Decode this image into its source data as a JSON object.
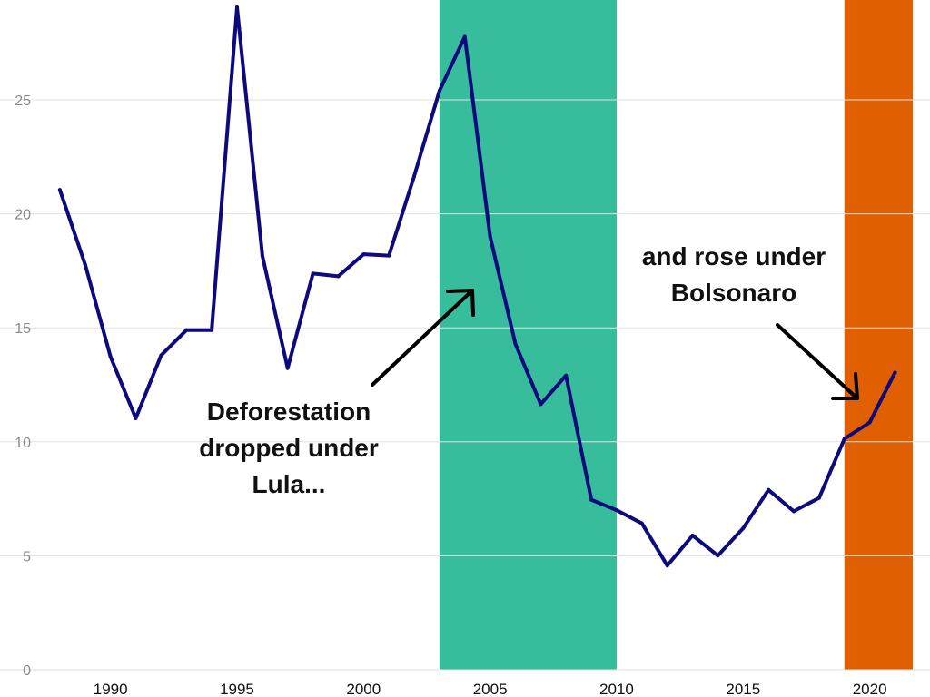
{
  "chart_data": {
    "type": "line",
    "title": "",
    "xlabel": "",
    "ylabel": "",
    "xlim": [
      1987.5,
      2021.7
    ],
    "ylim": [
      0,
      29.3
    ],
    "x_ticks": [
      1990,
      1995,
      2000,
      2005,
      2010,
      2015,
      2020
    ],
    "y_ticks": [
      0,
      5,
      10,
      15,
      20,
      25
    ],
    "grid": "horizontal",
    "series": [
      {
        "color": "#0d0a7d",
        "x": [
          1988,
          1989,
          1990,
          1991,
          1992,
          1993,
          1994,
          1995,
          1996,
          1997,
          1998,
          1999,
          2000,
          2001,
          2002,
          2003,
          2004,
          2005,
          2006,
          2007,
          2008,
          2009,
          2010,
          2011,
          2012,
          2013,
          2014,
          2015,
          2016,
          2017,
          2018,
          2019,
          2020,
          2021
        ],
        "y": [
          21.05,
          17.77,
          13.73,
          11.03,
          13.79,
          14.9,
          14.9,
          29.06,
          18.16,
          13.23,
          17.38,
          17.26,
          18.23,
          18.17,
          21.65,
          25.4,
          27.77,
          19.01,
          14.29,
          11.65,
          12.91,
          7.46,
          7.0,
          6.42,
          4.57,
          5.89,
          5.01,
          6.21,
          7.89,
          6.95,
          7.54,
          10.13,
          10.85,
          13.04
        ]
      }
    ],
    "bands": [
      {
        "start": 2003,
        "end": 2010,
        "color": "#37bd9c"
      },
      {
        "start": 2019,
        "end": 2021.7,
        "color": "#e05f00"
      }
    ],
    "annotations": [
      {
        "lines": [
          "Deforestation",
          "dropped under",
          "Lula..."
        ]
      },
      {
        "lines": [
          "and rose under",
          "Bolsonaro"
        ]
      }
    ]
  }
}
